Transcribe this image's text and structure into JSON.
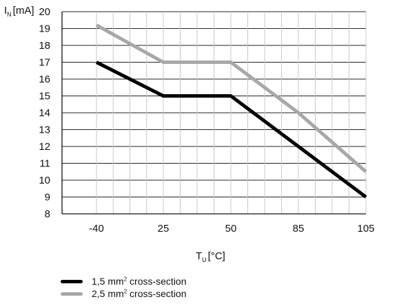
{
  "chart_data": {
    "type": "line",
    "ylabel": {
      "main": "I",
      "subscript": "N",
      "unit": "[mA]"
    },
    "xlabel": {
      "main": "T",
      "subscript": "U",
      "unit": "[°C]"
    },
    "x_tick_labels": [
      "-40",
      "25",
      "50",
      "85",
      "105"
    ],
    "y_tick_labels": [
      "20",
      "19",
      "18",
      "17",
      "16",
      "15",
      "14",
      "13",
      "12",
      "11",
      "10",
      "9",
      "8"
    ],
    "ylim": [
      8,
      20
    ],
    "grid": true,
    "legend_position": "bottom-left",
    "x_categories": [
      "-40",
      "25",
      "50",
      "85",
      "105"
    ],
    "series": [
      {
        "name": "1,5 mm² cross-section",
        "label_prefix": "1,5 mm",
        "label_superscript": "2",
        "label_suffix": " cross-section",
        "color": "#000000",
        "values": [
          17.0,
          15.0,
          15.0,
          12.0,
          9.0
        ]
      },
      {
        "name": "2,5 mm² cross-section",
        "label_prefix": "2,5 mm",
        "label_superscript": "2",
        "label_suffix": " cross-section",
        "color": "#a8a8a8",
        "values": [
          19.2,
          17.0,
          17.0,
          14.0,
          10.5
        ]
      }
    ]
  }
}
